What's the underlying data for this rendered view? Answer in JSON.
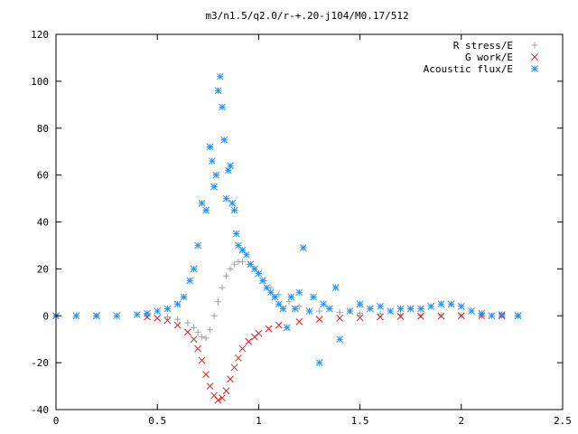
{
  "chart_data": {
    "type": "scatter",
    "title": "m3/n1.5/q2.0/r-+.20-j104/M0.17/512",
    "xlabel": "",
    "ylabel": "",
    "xlim": [
      0,
      2.5
    ],
    "ylim": [
      -40,
      120
    ],
    "xticks": [
      0,
      0.5,
      1,
      1.5,
      2,
      2.5
    ],
    "yticks": [
      -40,
      -20,
      0,
      20,
      40,
      60,
      80,
      100,
      120
    ],
    "grid": false,
    "legend_position": "top-right",
    "series": [
      {
        "name": "R stress/E",
        "marker": "plus",
        "color": "#a0a0a0",
        "x": [
          0.0,
          0.2,
          0.45,
          0.55,
          0.6,
          0.65,
          0.68,
          0.7,
          0.72,
          0.74,
          0.76,
          0.78,
          0.8,
          0.82,
          0.84,
          0.86,
          0.88,
          0.9,
          0.92,
          0.95,
          0.98,
          1.0,
          1.03,
          1.06,
          1.1,
          1.15,
          1.2,
          1.3,
          1.4,
          1.5,
          1.6,
          1.7,
          1.8,
          1.9,
          2.0,
          2.1,
          2.2,
          2.28
        ],
        "y": [
          0,
          0,
          0,
          -0.5,
          -1.5,
          -3,
          -5,
          -7,
          -9,
          -9.5,
          -6,
          0,
          6,
          12,
          17,
          20,
          22,
          23,
          23,
          22,
          20,
          18,
          15,
          12,
          9,
          6,
          4,
          2,
          1.5,
          1,
          0.8,
          0.5,
          0.3,
          0.2,
          0.1,
          0,
          0,
          0
        ]
      },
      {
        "name": "G work/E",
        "marker": "cross",
        "color": "#e02020",
        "x": [
          0.0,
          0.2,
          0.45,
          0.5,
          0.55,
          0.6,
          0.65,
          0.68,
          0.7,
          0.72,
          0.74,
          0.76,
          0.78,
          0.8,
          0.82,
          0.84,
          0.86,
          0.88,
          0.9,
          0.92,
          0.95,
          0.98,
          1.0,
          1.05,
          1.1,
          1.2,
          1.3,
          1.4,
          1.5,
          1.6,
          1.7,
          1.8,
          1.9,
          2.0,
          2.1,
          2.2,
          2.28
        ],
        "y": [
          0,
          0,
          -0.5,
          -1,
          -2,
          -4,
          -7,
          -10,
          -14,
          -19,
          -25,
          -30,
          -34,
          -36,
          -35,
          -32,
          -27,
          -22,
          -18,
          -14,
          -11,
          -9,
          -7.5,
          -5.5,
          -4,
          -2.5,
          -1.5,
          -1,
          -0.8,
          -0.5,
          -0.3,
          -0.2,
          -0.1,
          0,
          0,
          0,
          0
        ]
      },
      {
        "name": "Acoustic flux/E",
        "marker": "star",
        "color": "#1e90ff",
        "x": [
          0.0,
          0.1,
          0.2,
          0.3,
          0.4,
          0.45,
          0.5,
          0.55,
          0.6,
          0.63,
          0.66,
          0.68,
          0.7,
          0.72,
          0.74,
          0.76,
          0.77,
          0.78,
          0.79,
          0.8,
          0.81,
          0.82,
          0.83,
          0.84,
          0.85,
          0.86,
          0.87,
          0.88,
          0.89,
          0.9,
          0.92,
          0.94,
          0.96,
          0.98,
          1.0,
          1.02,
          1.04,
          1.06,
          1.08,
          1.1,
          1.12,
          1.14,
          1.16,
          1.18,
          1.2,
          1.22,
          1.25,
          1.27,
          1.3,
          1.32,
          1.35,
          1.38,
          1.4,
          1.45,
          1.5,
          1.55,
          1.6,
          1.65,
          1.7,
          1.75,
          1.8,
          1.85,
          1.9,
          1.95,
          2.0,
          2.05,
          2.1,
          2.15,
          2.2,
          2.28
        ],
        "y": [
          0,
          0,
          0,
          0,
          0.5,
          1,
          2,
          3,
          5,
          8,
          15,
          20,
          30,
          48,
          45,
          72,
          66,
          55,
          60,
          96,
          102,
          89,
          75,
          50,
          62,
          64,
          48,
          45,
          35,
          30,
          28,
          26,
          22,
          20,
          18,
          15,
          12,
          10,
          8,
          5,
          3,
          -5,
          8,
          3,
          10,
          29,
          2,
          8,
          -20,
          5,
          3,
          12,
          -10,
          2,
          5,
          3,
          4,
          2,
          3,
          3,
          3,
          4,
          5,
          5,
          4,
          2,
          1,
          0,
          0.5,
          0
        ]
      }
    ]
  }
}
